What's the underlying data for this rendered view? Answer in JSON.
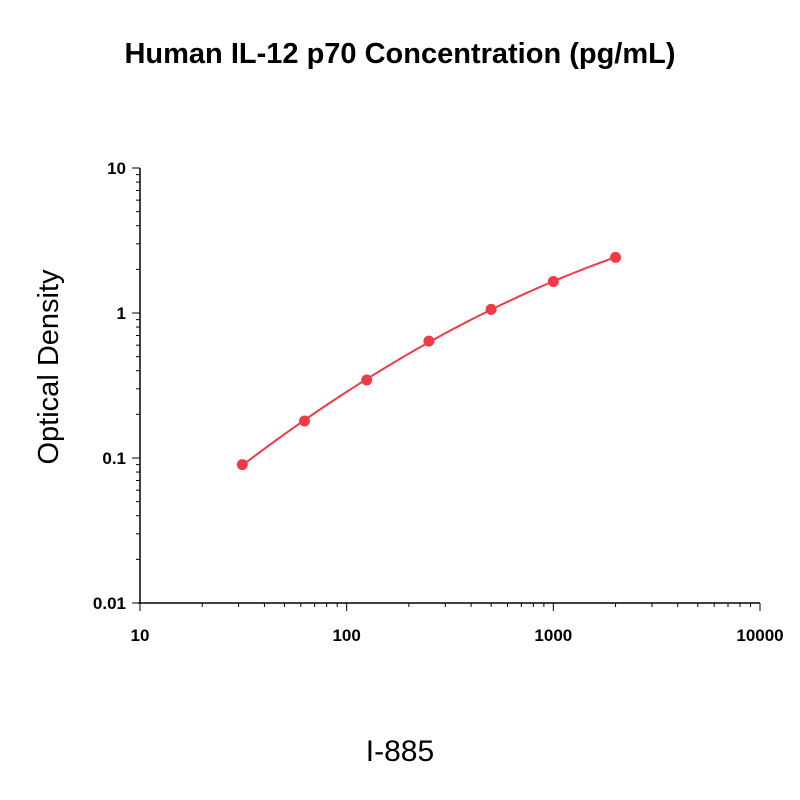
{
  "title": "Human IL-12 p70 Concentration (pg/mL)",
  "catalog_label": "I-885",
  "chart_data": {
    "type": "scatter",
    "title": "Human IL-12 p70 Concentration (pg/mL)",
    "xlabel": "",
    "ylabel": "Optical Density",
    "x_scale": "log",
    "y_scale": "log",
    "xlim": [
      10,
      10000
    ],
    "ylim": [
      0.01,
      10
    ],
    "x_ticks": [
      "10",
      "100",
      "1000",
      "10000"
    ],
    "y_ticks": [
      "10",
      "1",
      "0.1",
      "0.01"
    ],
    "grid": false,
    "legend": "none",
    "colors": {
      "series": "#f03a47",
      "axis": "#000000"
    },
    "series": [
      {
        "x": [
          31.25,
          62.5,
          125,
          250,
          500,
          1000,
          2000
        ],
        "y": [
          0.09,
          0.18,
          0.345,
          0.64,
          1.06,
          1.65,
          2.42
        ]
      }
    ]
  }
}
